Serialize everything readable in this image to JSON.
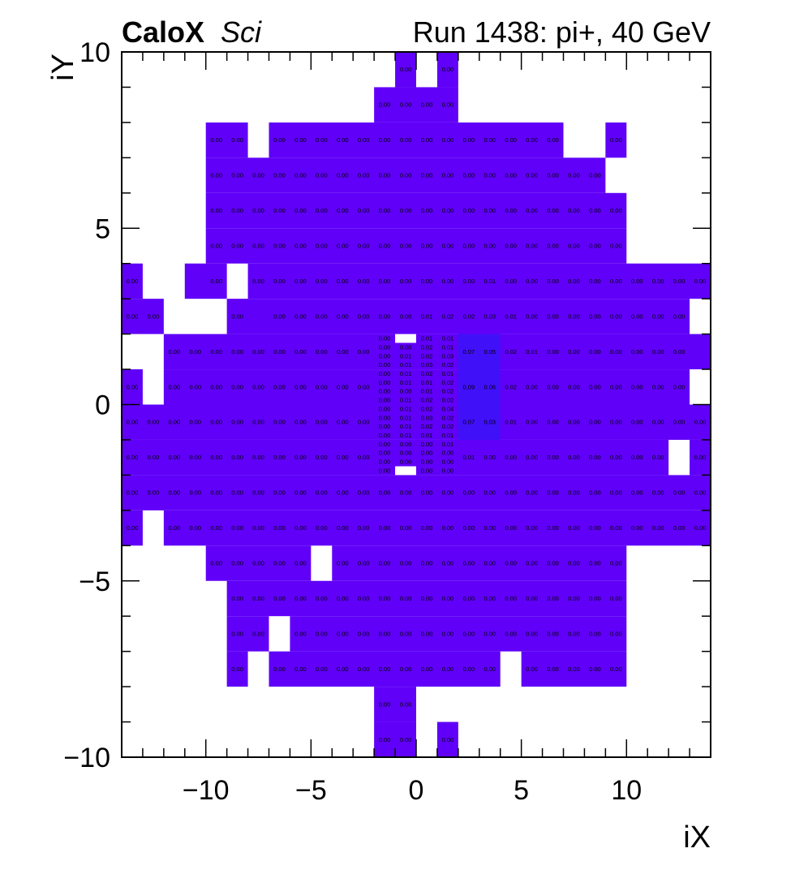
{
  "header": {
    "brand_bold": "CaloX",
    "brand_italic": "Sci",
    "run_label": "Run 1438: pi+, 40 GeV"
  },
  "chart_data": {
    "type": "heatmap",
    "xlabel": "iX",
    "ylabel": "iY",
    "xlim": [
      -14,
      14
    ],
    "ylim": [
      -10,
      10
    ],
    "x_ticks": [
      -10,
      -5,
      0,
      5,
      10
    ],
    "y_ticks": [
      -10,
      -5,
      0,
      5,
      10
    ],
    "fill_color": "#6000f8",
    "fill_color_hot": "#4010f8",
    "blocks": [
      {
        "iy_range": [
          9,
          10
        ],
        "cols": [
          [
            -1,
            0
          ],
          [
            1,
            2
          ]
        ],
        "dx": 1
      },
      {
        "iy_range": [
          8,
          9
        ],
        "cols": [
          [
            -2,
            2
          ]
        ],
        "dx": 1
      },
      {
        "iy_range": [
          7,
          8
        ],
        "cols": [
          [
            -10,
            -8
          ],
          [
            -7,
            7
          ],
          [
            9,
            10
          ]
        ],
        "dx": 1
      },
      {
        "iy_range": [
          6,
          7
        ],
        "cols": [
          [
            -10,
            9
          ]
        ],
        "dx": 1
      },
      {
        "iy_range": [
          5,
          6
        ],
        "cols": [
          [
            -10,
            10
          ]
        ],
        "dx": 1
      },
      {
        "iy_range": [
          4,
          5
        ],
        "cols": [
          [
            -10,
            10
          ]
        ],
        "dx": 1
      },
      {
        "iy_range": [
          3,
          4
        ],
        "cols": [
          [
            -14,
            -13
          ],
          [
            -11,
            -9
          ],
          [
            -8,
            14
          ]
        ],
        "dx": 1
      },
      {
        "iy_range": [
          2,
          3
        ],
        "cols": [
          [
            -14,
            -12
          ],
          [
            -9,
            13
          ]
        ],
        "dx": 1
      },
      {
        "iy_range": [
          1,
          2
        ],
        "cols": [
          [
            -12,
            14
          ]
        ],
        "dx": 1
      },
      {
        "iy_range": [
          0,
          1
        ],
        "cols": [
          [
            -14,
            -13
          ],
          [
            -12,
            13
          ]
        ],
        "dx": 1
      },
      {
        "iy_range": [
          -1,
          0
        ],
        "cols": [
          [
            -14,
            14
          ]
        ],
        "dx": 1
      },
      {
        "iy_range": [
          -2,
          -1
        ],
        "cols": [
          [
            -14,
            12
          ],
          [
            13,
            14
          ]
        ],
        "dx": 1
      },
      {
        "iy_range": [
          -3,
          -2
        ],
        "cols": [
          [
            -14,
            14
          ]
        ],
        "dx": 1
      },
      {
        "iy_range": [
          -4,
          -3
        ],
        "cols": [
          [
            -14,
            -13
          ],
          [
            -12,
            14
          ]
        ],
        "dx": 1
      },
      {
        "iy_range": [
          -5,
          -4
        ],
        "cols": [
          [
            -10,
            -5
          ],
          [
            -4,
            10
          ]
        ],
        "dx": 1
      },
      {
        "iy_range": [
          -6,
          -5
        ],
        "cols": [
          [
            -9,
            10
          ]
        ],
        "dx": 1
      },
      {
        "iy_range": [
          -7,
          -6
        ],
        "cols": [
          [
            -9,
            -7
          ],
          [
            -6,
            10
          ]
        ],
        "dx": 1
      },
      {
        "iy_range": [
          -8,
          -7
        ],
        "cols": [
          [
            -9,
            -8
          ],
          [
            -7,
            4
          ],
          [
            5,
            10
          ]
        ],
        "dx": 1
      },
      {
        "iy_range": [
          -9,
          -8
        ],
        "cols": [
          [
            -2,
            0
          ]
        ],
        "dx": 1
      },
      {
        "iy_range": [
          -10,
          -9
        ],
        "cols": [
          [
            -2,
            0
          ],
          [
            1,
            2
          ]
        ],
        "dx": 1
      }
    ],
    "hot_region": {
      "ix_range": [
        2,
        4
      ],
      "iy_range": [
        -1,
        2
      ]
    },
    "fine_region": {
      "ix_range": [
        -2,
        2
      ],
      "iy_range": [
        -2,
        2
      ],
      "rows": [
        [
          "0.00",
          "",
          "0.01",
          "0.01"
        ],
        [
          "0.00",
          "0.00",
          "0.02",
          "0.01"
        ],
        [
          "0.00",
          "0.01",
          "0.02",
          "0.03"
        ],
        [
          "0.00",
          "0.01",
          "0.03",
          "0.02"
        ],
        [
          "0.00",
          "0.01",
          "0.02",
          "0.01"
        ],
        [
          "0.00",
          "0.01",
          "0.01",
          "0.02"
        ],
        [
          "0.00",
          "0.00",
          "0.01",
          "0.02"
        ],
        [
          "0.00",
          "0.01",
          "0.02",
          "0.02"
        ],
        [
          "0.00",
          "0.01",
          "0.02",
          "0.04"
        ],
        [
          "0.00",
          "0.01",
          "0.03",
          "0.02"
        ],
        [
          "0.00",
          "0.01",
          "0.02",
          "0.02"
        ],
        [
          "0.00",
          "0.01",
          "0.01",
          "0.01"
        ],
        [
          "0.00",
          "0.00",
          "0.00",
          "0.01"
        ],
        [
          "0.00",
          "0.00",
          "0.00",
          "0.00"
        ],
        [
          "0.00",
          "0.00",
          "0.00",
          "0.00"
        ],
        [
          "0.00",
          "",
          "0.00",
          "0.00"
        ]
      ],
      "holes": [
        [
          -1,
          1.75,
          0.25
        ],
        [
          -1,
          -2,
          0.25
        ]
      ]
    },
    "special_values": [
      {
        "ix": 2,
        "iy": 2,
        "v": "0.02"
      },
      {
        "ix": 3,
        "iy": 2,
        "v": "0.03"
      },
      {
        "ix": 4,
        "iy": 2,
        "v": "0.01"
      },
      {
        "ix": 0,
        "iy": 2,
        "v": "0.01"
      },
      {
        "ix": 1,
        "iy": 2,
        "v": "0.02"
      },
      {
        "ix": 3,
        "iy": 3,
        "v": "0.01"
      },
      {
        "ix": 2,
        "iy": 1,
        "v": "0.07"
      },
      {
        "ix": 3,
        "iy": 1,
        "v": "0.05"
      },
      {
        "ix": 4,
        "iy": 1,
        "v": "0.02"
      },
      {
        "ix": 5,
        "iy": 1,
        "v": "0.01"
      },
      {
        "ix": 2,
        "iy": 0,
        "v": "0.09"
      },
      {
        "ix": 3,
        "iy": 0,
        "v": "0.06"
      },
      {
        "ix": 4,
        "iy": 0,
        "v": "0.02"
      },
      {
        "ix": 2,
        "iy": -1,
        "v": "0.07"
      },
      {
        "ix": 3,
        "iy": -1,
        "v": "0.03"
      },
      {
        "ix": 4,
        "iy": -1,
        "v": "0.01"
      },
      {
        "ix": 2,
        "iy": -2,
        "v": "0.01"
      }
    ],
    "empty_label_cells": [
      [
        -8,
        2
      ],
      [
        -13,
        1
      ],
      [
        13,
        1
      ],
      [
        -11,
        3
      ],
      [
        -12,
        3
      ]
    ],
    "default_value": "0.00"
  }
}
